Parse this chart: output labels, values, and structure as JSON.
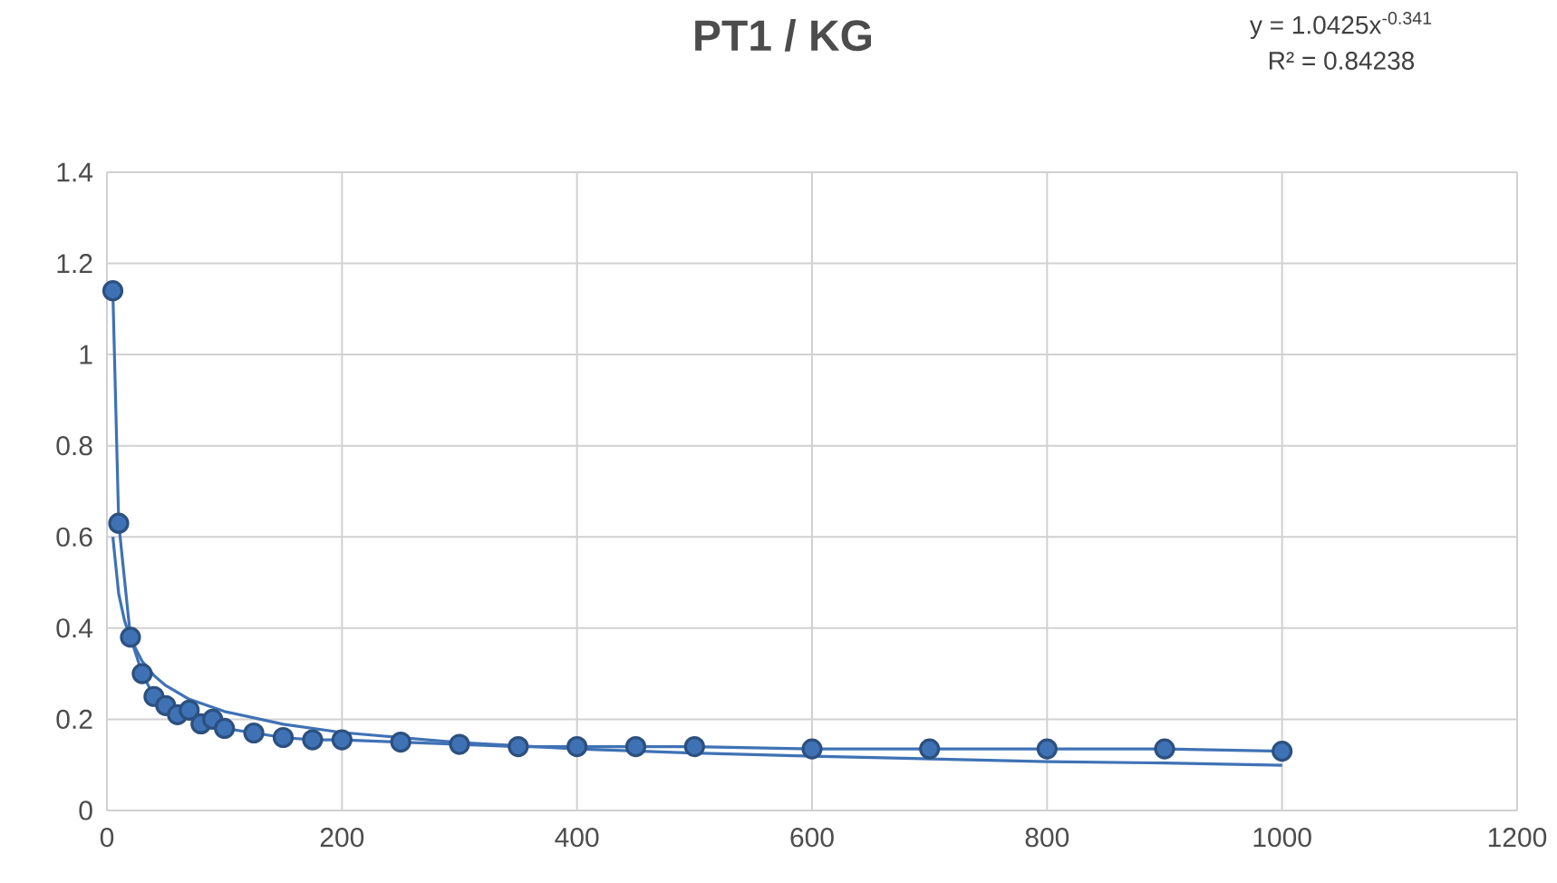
{
  "chart_data": {
    "type": "line",
    "title": "PT1 / KG",
    "annotations": [
      "y = 1.0425x$^{-0.341}$",
      "R² = 0.84238"
    ],
    "xlim": [
      0,
      1200
    ],
    "xticks": [
      0,
      200,
      400,
      600,
      800,
      1000,
      1200
    ],
    "ylim": [
      0,
      1.4
    ],
    "yticks": [
      0,
      0.2,
      0.4,
      0.6,
      0.8,
      1,
      1.2,
      1.4
    ],
    "grid": true,
    "marker": "circle",
    "series": [
      {
        "color": "#3f72b5",
        "x": [
          5,
          10,
          20,
          30,
          40,
          50,
          60,
          70,
          80,
          90,
          100,
          125,
          150,
          175,
          200,
          250,
          300,
          350,
          400,
          450,
          500,
          600,
          700,
          800,
          900,
          1000
        ],
        "values": [
          1.14,
          0.63,
          0.38,
          0.3,
          0.25,
          0.23,
          0.21,
          0.22,
          0.19,
          0.2,
          0.18,
          0.17,
          0.16,
          0.155,
          0.155,
          0.15,
          0.145,
          0.14,
          0.14,
          0.14,
          0.14,
          0.135,
          0.135,
          0.135,
          0.135,
          0.13
        ]
      },
      {
        "color": "#3f72b5",
        "type": "line",
        "marker": "none",
        "x": [
          5,
          10,
          15,
          20,
          30,
          40,
          50,
          70,
          100,
          150,
          200,
          300,
          400,
          500,
          600,
          700,
          800,
          900,
          1000
        ],
        "values": [
          0.6,
          0.475,
          0.416,
          0.377,
          0.327,
          0.296,
          0.274,
          0.244,
          0.217,
          0.189,
          0.171,
          0.149,
          0.135,
          0.126,
          0.119,
          0.113,
          0.107,
          0.104,
          0.099
        ]
      }
    ]
  }
}
